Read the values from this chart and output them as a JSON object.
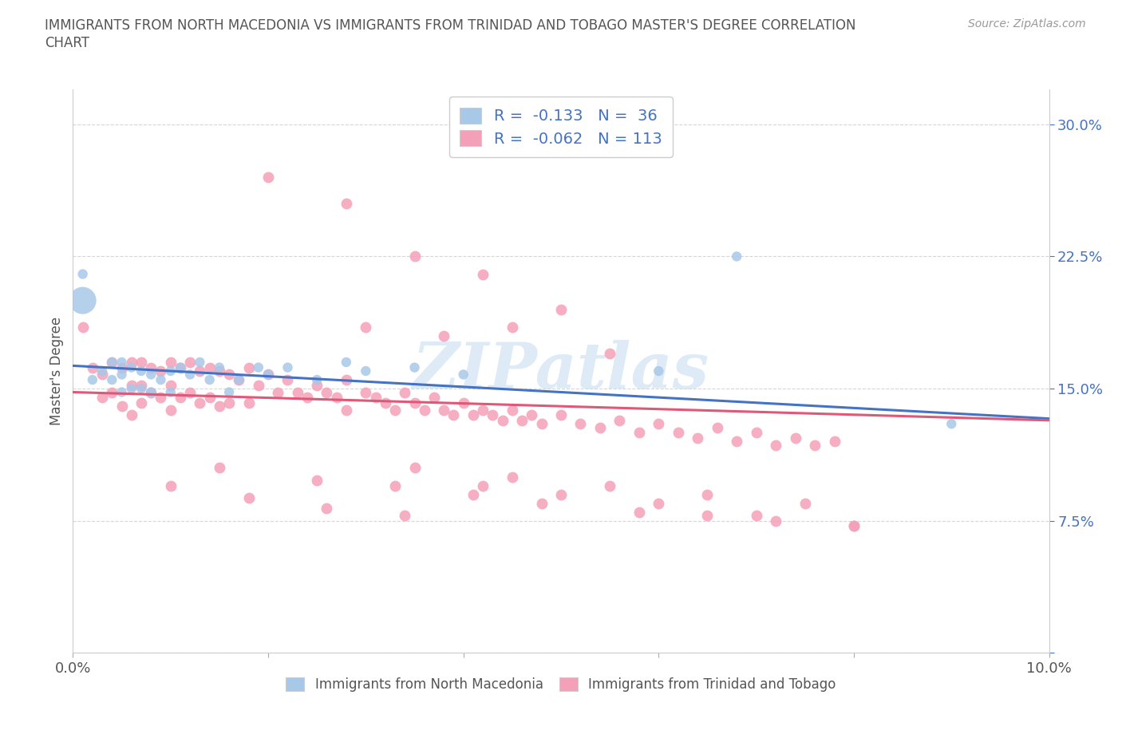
{
  "title_line1": "IMMIGRANTS FROM NORTH MACEDONIA VS IMMIGRANTS FROM TRINIDAD AND TOBAGO MASTER'S DEGREE CORRELATION",
  "title_line2": "CHART",
  "source": "Source: ZipAtlas.com",
  "ylabel": "Master's Degree",
  "color_blue": "#a8c8e8",
  "color_pink": "#f4a0b8",
  "line_blue": "#4472c4",
  "line_pink": "#e05878",
  "legend_color_text": "#4472c4",
  "watermark_color": "#c8dff0",
  "nm_x": [
    0.001,
    0.001,
    0.002,
    0.003,
    0.004,
    0.004,
    0.005,
    0.005,
    0.005,
    0.006,
    0.006,
    0.007,
    0.007,
    0.008,
    0.008,
    0.009,
    0.01,
    0.01,
    0.011,
    0.012,
    0.013,
    0.014,
    0.015,
    0.016,
    0.017,
    0.019,
    0.02,
    0.022,
    0.025,
    0.028,
    0.03,
    0.035,
    0.04,
    0.06,
    0.068,
    0.09
  ],
  "nm_y": [
    0.2,
    0.215,
    0.155,
    0.16,
    0.165,
    0.155,
    0.165,
    0.158,
    0.148,
    0.162,
    0.15,
    0.16,
    0.15,
    0.158,
    0.148,
    0.155,
    0.16,
    0.148,
    0.162,
    0.158,
    0.165,
    0.155,
    0.162,
    0.148,
    0.155,
    0.162,
    0.158,
    0.162,
    0.155,
    0.165,
    0.16,
    0.162,
    0.158,
    0.16,
    0.225,
    0.13
  ],
  "nm_size": [
    600,
    80,
    80,
    80,
    80,
    80,
    80,
    80,
    80,
    80,
    80,
    80,
    80,
    80,
    80,
    80,
    80,
    80,
    80,
    80,
    80,
    80,
    80,
    80,
    80,
    80,
    80,
    80,
    80,
    80,
    80,
    80,
    80,
    80,
    80,
    80
  ],
  "tt_x": [
    0.001,
    0.002,
    0.003,
    0.003,
    0.004,
    0.004,
    0.005,
    0.005,
    0.006,
    0.006,
    0.006,
    0.007,
    0.007,
    0.007,
    0.008,
    0.008,
    0.009,
    0.009,
    0.01,
    0.01,
    0.01,
    0.011,
    0.011,
    0.012,
    0.012,
    0.013,
    0.013,
    0.014,
    0.014,
    0.015,
    0.015,
    0.016,
    0.016,
    0.017,
    0.018,
    0.018,
    0.019,
    0.02,
    0.021,
    0.022,
    0.023,
    0.024,
    0.025,
    0.026,
    0.027,
    0.028,
    0.028,
    0.03,
    0.031,
    0.032,
    0.033,
    0.034,
    0.035,
    0.036,
    0.037,
    0.038,
    0.039,
    0.04,
    0.041,
    0.042,
    0.043,
    0.044,
    0.045,
    0.046,
    0.047,
    0.048,
    0.05,
    0.052,
    0.054,
    0.056,
    0.058,
    0.06,
    0.062,
    0.064,
    0.066,
    0.068,
    0.07,
    0.072,
    0.074,
    0.076,
    0.078,
    0.02,
    0.028,
    0.035,
    0.042,
    0.05,
    0.03,
    0.038,
    0.045,
    0.055,
    0.015,
    0.025,
    0.033,
    0.041,
    0.048,
    0.058,
    0.065,
    0.072,
    0.08,
    0.01,
    0.018,
    0.026,
    0.034,
    0.042,
    0.05,
    0.06,
    0.07,
    0.08,
    0.035,
    0.045,
    0.055,
    0.065,
    0.075
  ],
  "tt_y": [
    0.185,
    0.162,
    0.158,
    0.145,
    0.165,
    0.148,
    0.162,
    0.14,
    0.165,
    0.152,
    0.135,
    0.165,
    0.152,
    0.142,
    0.162,
    0.148,
    0.16,
    0.145,
    0.165,
    0.152,
    0.138,
    0.162,
    0.145,
    0.165,
    0.148,
    0.16,
    0.142,
    0.162,
    0.145,
    0.16,
    0.14,
    0.158,
    0.142,
    0.155,
    0.162,
    0.142,
    0.152,
    0.158,
    0.148,
    0.155,
    0.148,
    0.145,
    0.152,
    0.148,
    0.145,
    0.155,
    0.138,
    0.148,
    0.145,
    0.142,
    0.138,
    0.148,
    0.142,
    0.138,
    0.145,
    0.138,
    0.135,
    0.142,
    0.135,
    0.138,
    0.135,
    0.132,
    0.138,
    0.132,
    0.135,
    0.13,
    0.135,
    0.13,
    0.128,
    0.132,
    0.125,
    0.13,
    0.125,
    0.122,
    0.128,
    0.12,
    0.125,
    0.118,
    0.122,
    0.118,
    0.12,
    0.27,
    0.255,
    0.225,
    0.215,
    0.195,
    0.185,
    0.18,
    0.185,
    0.17,
    0.105,
    0.098,
    0.095,
    0.09,
    0.085,
    0.08,
    0.078,
    0.075,
    0.072,
    0.095,
    0.088,
    0.082,
    0.078,
    0.095,
    0.09,
    0.085,
    0.078,
    0.072,
    0.105,
    0.1,
    0.095,
    0.09,
    0.085
  ],
  "xlim": [
    0.0,
    0.1
  ],
  "ylim": [
    0.0,
    0.32
  ],
  "xtick_pos": [
    0.0,
    0.02,
    0.04,
    0.06,
    0.08,
    0.1
  ],
  "xticklabels": [
    "0.0%",
    "",
    "",
    "",
    "",
    "10.0%"
  ],
  "ytick_pos": [
    0.0,
    0.075,
    0.15,
    0.225,
    0.3
  ],
  "yticklabels": [
    "",
    "7.5%",
    "15.0%",
    "22.5%",
    "30.0%"
  ],
  "nm_trend_x0": 0.0,
  "nm_trend_x1": 0.1,
  "nm_trend_y0": 0.163,
  "nm_trend_y1": 0.133,
  "tt_trend_x0": 0.0,
  "tt_trend_x1": 0.1,
  "tt_trend_y0": 0.148,
  "tt_trend_y1": 0.132
}
